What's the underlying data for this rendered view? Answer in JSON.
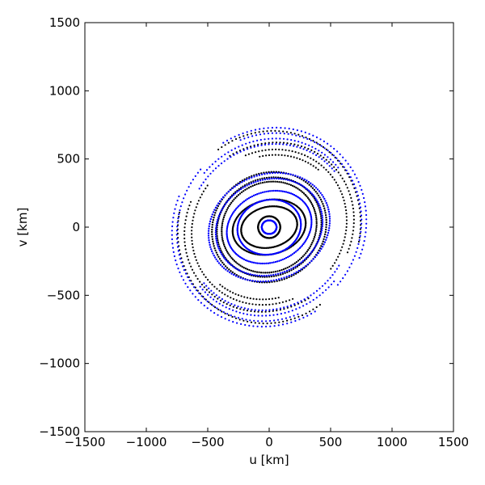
{
  "chart_data": {
    "type": "scatter",
    "title": "",
    "xlabel": "u [km]",
    "ylabel": "v [km]",
    "xlim": [
      -1500,
      1500
    ],
    "ylim": [
      -1500,
      1500
    ],
    "xticks": [
      -1500,
      -1000,
      -500,
      0,
      500,
      1000,
      1500
    ],
    "yticks": [
      -1500,
      -1000,
      -500,
      0,
      500,
      1000,
      1500
    ],
    "xtick_labels": [
      "−1500",
      "−1000",
      "−500",
      "0",
      "500",
      "1000",
      "1500"
    ],
    "ytick_labels": [
      "−1500",
      "−1000",
      "−500",
      "0",
      "500",
      "1000",
      "1500"
    ],
    "grid": false,
    "legend": "none",
    "series": [
      {
        "color": "#000000",
        "tracks": [
          {
            "a": 750,
            "b": 700,
            "tilt": 20,
            "start": 150,
            "end": 285
          },
          {
            "a": 700,
            "b": 610,
            "tilt": 20,
            "start": 140,
            "end": 280
          },
          {
            "a": 640,
            "b": 560,
            "tilt": 20,
            "start": 125,
            "end": 270
          },
          {
            "a": 600,
            "b": 520,
            "tilt": 20,
            "start": 30,
            "end": 80
          },
          {
            "a": 470,
            "b": 400,
            "tilt": 15,
            "start": 0,
            "end": 360
          },
          {
            "a": 430,
            "b": 360,
            "tilt": 15,
            "start": 0,
            "end": 360
          },
          {
            "a": 390,
            "b": 330,
            "tilt": 15,
            "start": 0,
            "end": 360
          },
          {
            "a": 300,
            "b": 200,
            "tilt": 10,
            "start": 0,
            "end": 360
          },
          {
            "a": 230,
            "b": 150,
            "tilt": 10,
            "start": 0,
            "end": 360
          },
          {
            "a": 90,
            "b": 80,
            "tilt": 0,
            "start": 0,
            "end": 360
          }
        ]
      },
      {
        "color": "#0000ff",
        "tracks": [
          {
            "a": 800,
            "b": 720,
            "tilt": 20,
            "start": -40,
            "end": 100
          },
          {
            "a": 760,
            "b": 680,
            "tilt": 20,
            "start": -60,
            "end": 90
          },
          {
            "a": 720,
            "b": 640,
            "tilt": 20,
            "start": 200,
            "end": 300
          },
          {
            "a": 680,
            "b": 600,
            "tilt": 20,
            "start": 200,
            "end": 310
          },
          {
            "a": 500,
            "b": 390,
            "tilt": 15,
            "start": 0,
            "end": 360
          },
          {
            "a": 440,
            "b": 350,
            "tilt": 15,
            "start": 0,
            "end": 360
          },
          {
            "a": 350,
            "b": 260,
            "tilt": 15,
            "start": 0,
            "end": 360
          },
          {
            "a": 260,
            "b": 200,
            "tilt": 10,
            "start": 0,
            "end": 360
          },
          {
            "a": 60,
            "b": 50,
            "tilt": 0,
            "start": 0,
            "end": 360
          }
        ]
      }
    ]
  }
}
